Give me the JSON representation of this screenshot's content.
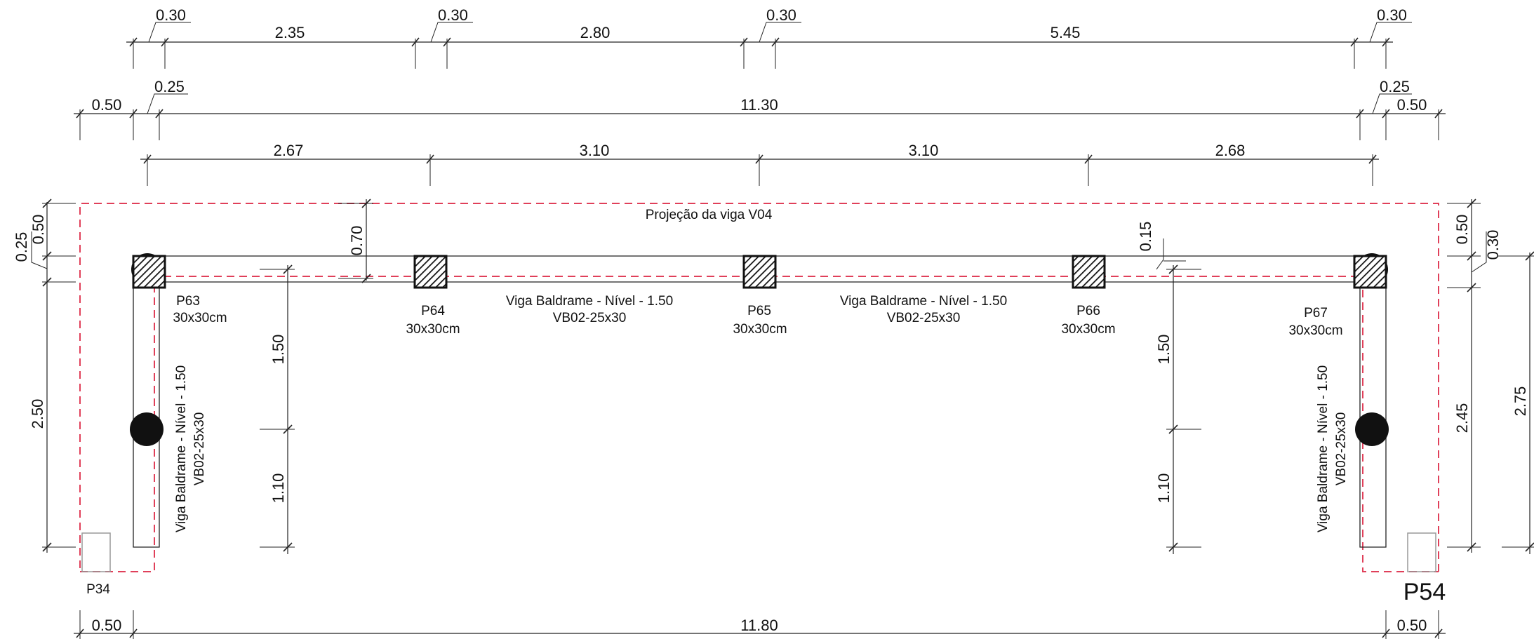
{
  "top_dims_1": [
    "0.30",
    "2.35",
    "0.30",
    "2.80",
    "0.30",
    "5.45",
    "0.30"
  ],
  "top_dims_2": [
    "0.50",
    "0.25",
    "11.30",
    "0.25",
    "0.50"
  ],
  "top_dims_3": [
    "2.67",
    "3.10",
    "3.10",
    "2.68"
  ],
  "left_dims": [
    "0.25",
    "0.50",
    "2.50"
  ],
  "inner_dims": [
    "0.70",
    "1.50",
    "1.10",
    "0.15",
    "1.50",
    "1.10"
  ],
  "right_dims": [
    "0.50",
    "0.30",
    "2.45",
    "2.75"
  ],
  "bottom_dims": [
    "0.50",
    "11.80",
    "0.50"
  ],
  "projection_label": "Projeção da viga V04",
  "beams": [
    {
      "line1": "Viga Baldrame -  Nível - 1.50",
      "line2": "VB02-25x30"
    },
    {
      "line1": "Viga Baldrame -  Nível - 1.50",
      "line2": "VB02-25x30"
    },
    {
      "line1": "Viga Baldrame -  Nível - 1.50",
      "line2": "VB02-25x30"
    },
    {
      "line1": "Viga Baldrame -  Nível - 1.50",
      "line2": "VB02-25x30"
    }
  ],
  "pillars": [
    {
      "name": "P63",
      "size": "30x30cm"
    },
    {
      "name": "P64",
      "size": "30x30cm"
    },
    {
      "name": "P65",
      "size": "30x30cm"
    },
    {
      "name": "P66",
      "size": "30x30cm"
    },
    {
      "name": "P67",
      "size": "30x30cm"
    }
  ],
  "corner_labels": [
    "P34",
    "P54"
  ],
  "colors": {
    "line": "#222222",
    "projection": "#e0405a",
    "fill": "#111111"
  }
}
